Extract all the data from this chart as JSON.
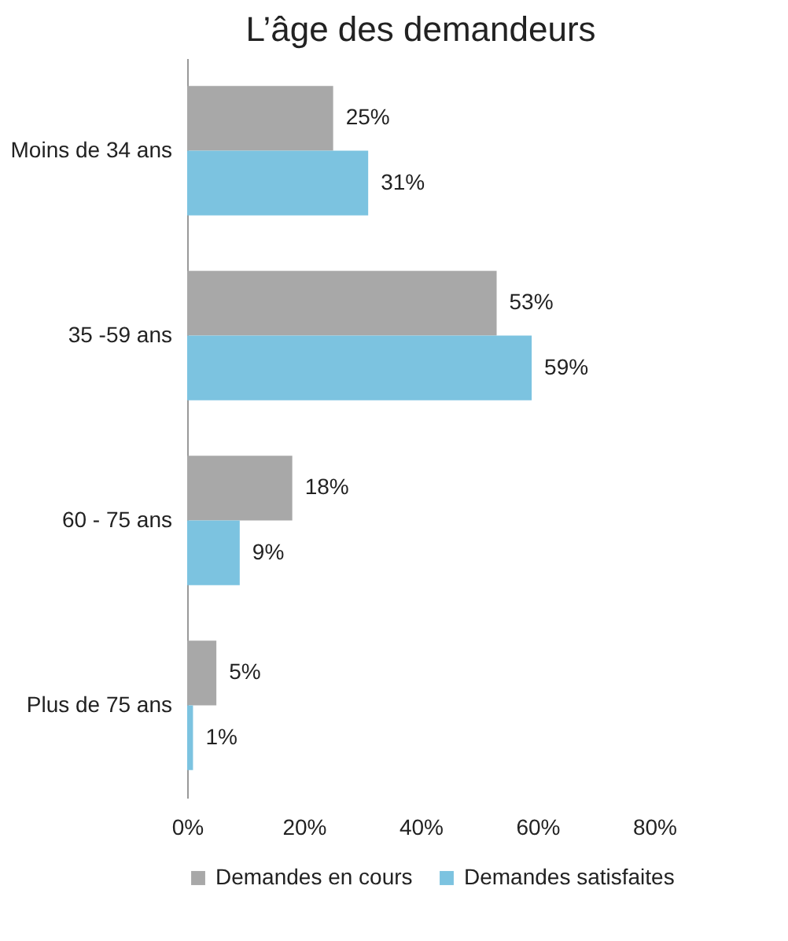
{
  "chart_data": {
    "type": "bar",
    "orientation": "horizontal",
    "title": "L’âge des demandeurs",
    "categories": [
      "Moins de 34 ans",
      "35  -59 ans",
      "60 - 75 ans",
      "Plus de 75 ans"
    ],
    "series": [
      {
        "name": "Demandes en cours",
        "color": "#a8a8a8",
        "values": [
          25,
          53,
          18,
          5
        ],
        "value_labels": [
          "25%",
          "53%",
          "18%",
          "5%"
        ]
      },
      {
        "name": "Demandes satisfaites",
        "color": "#7cc3e0",
        "values": [
          31,
          59,
          9,
          1
        ],
        "value_labels": [
          "31%",
          "59%",
          "9%",
          "1%"
        ]
      }
    ],
    "xlim": [
      0,
      80
    ],
    "xticks": [
      {
        "value": 0,
        "label": "0%"
      },
      {
        "value": 20,
        "label": "20%"
      },
      {
        "value": 40,
        "label": "40%"
      },
      {
        "value": 60,
        "label": "60%"
      },
      {
        "value": 80,
        "label": "80%"
      }
    ],
    "grid": false,
    "legend": "bottom"
  }
}
